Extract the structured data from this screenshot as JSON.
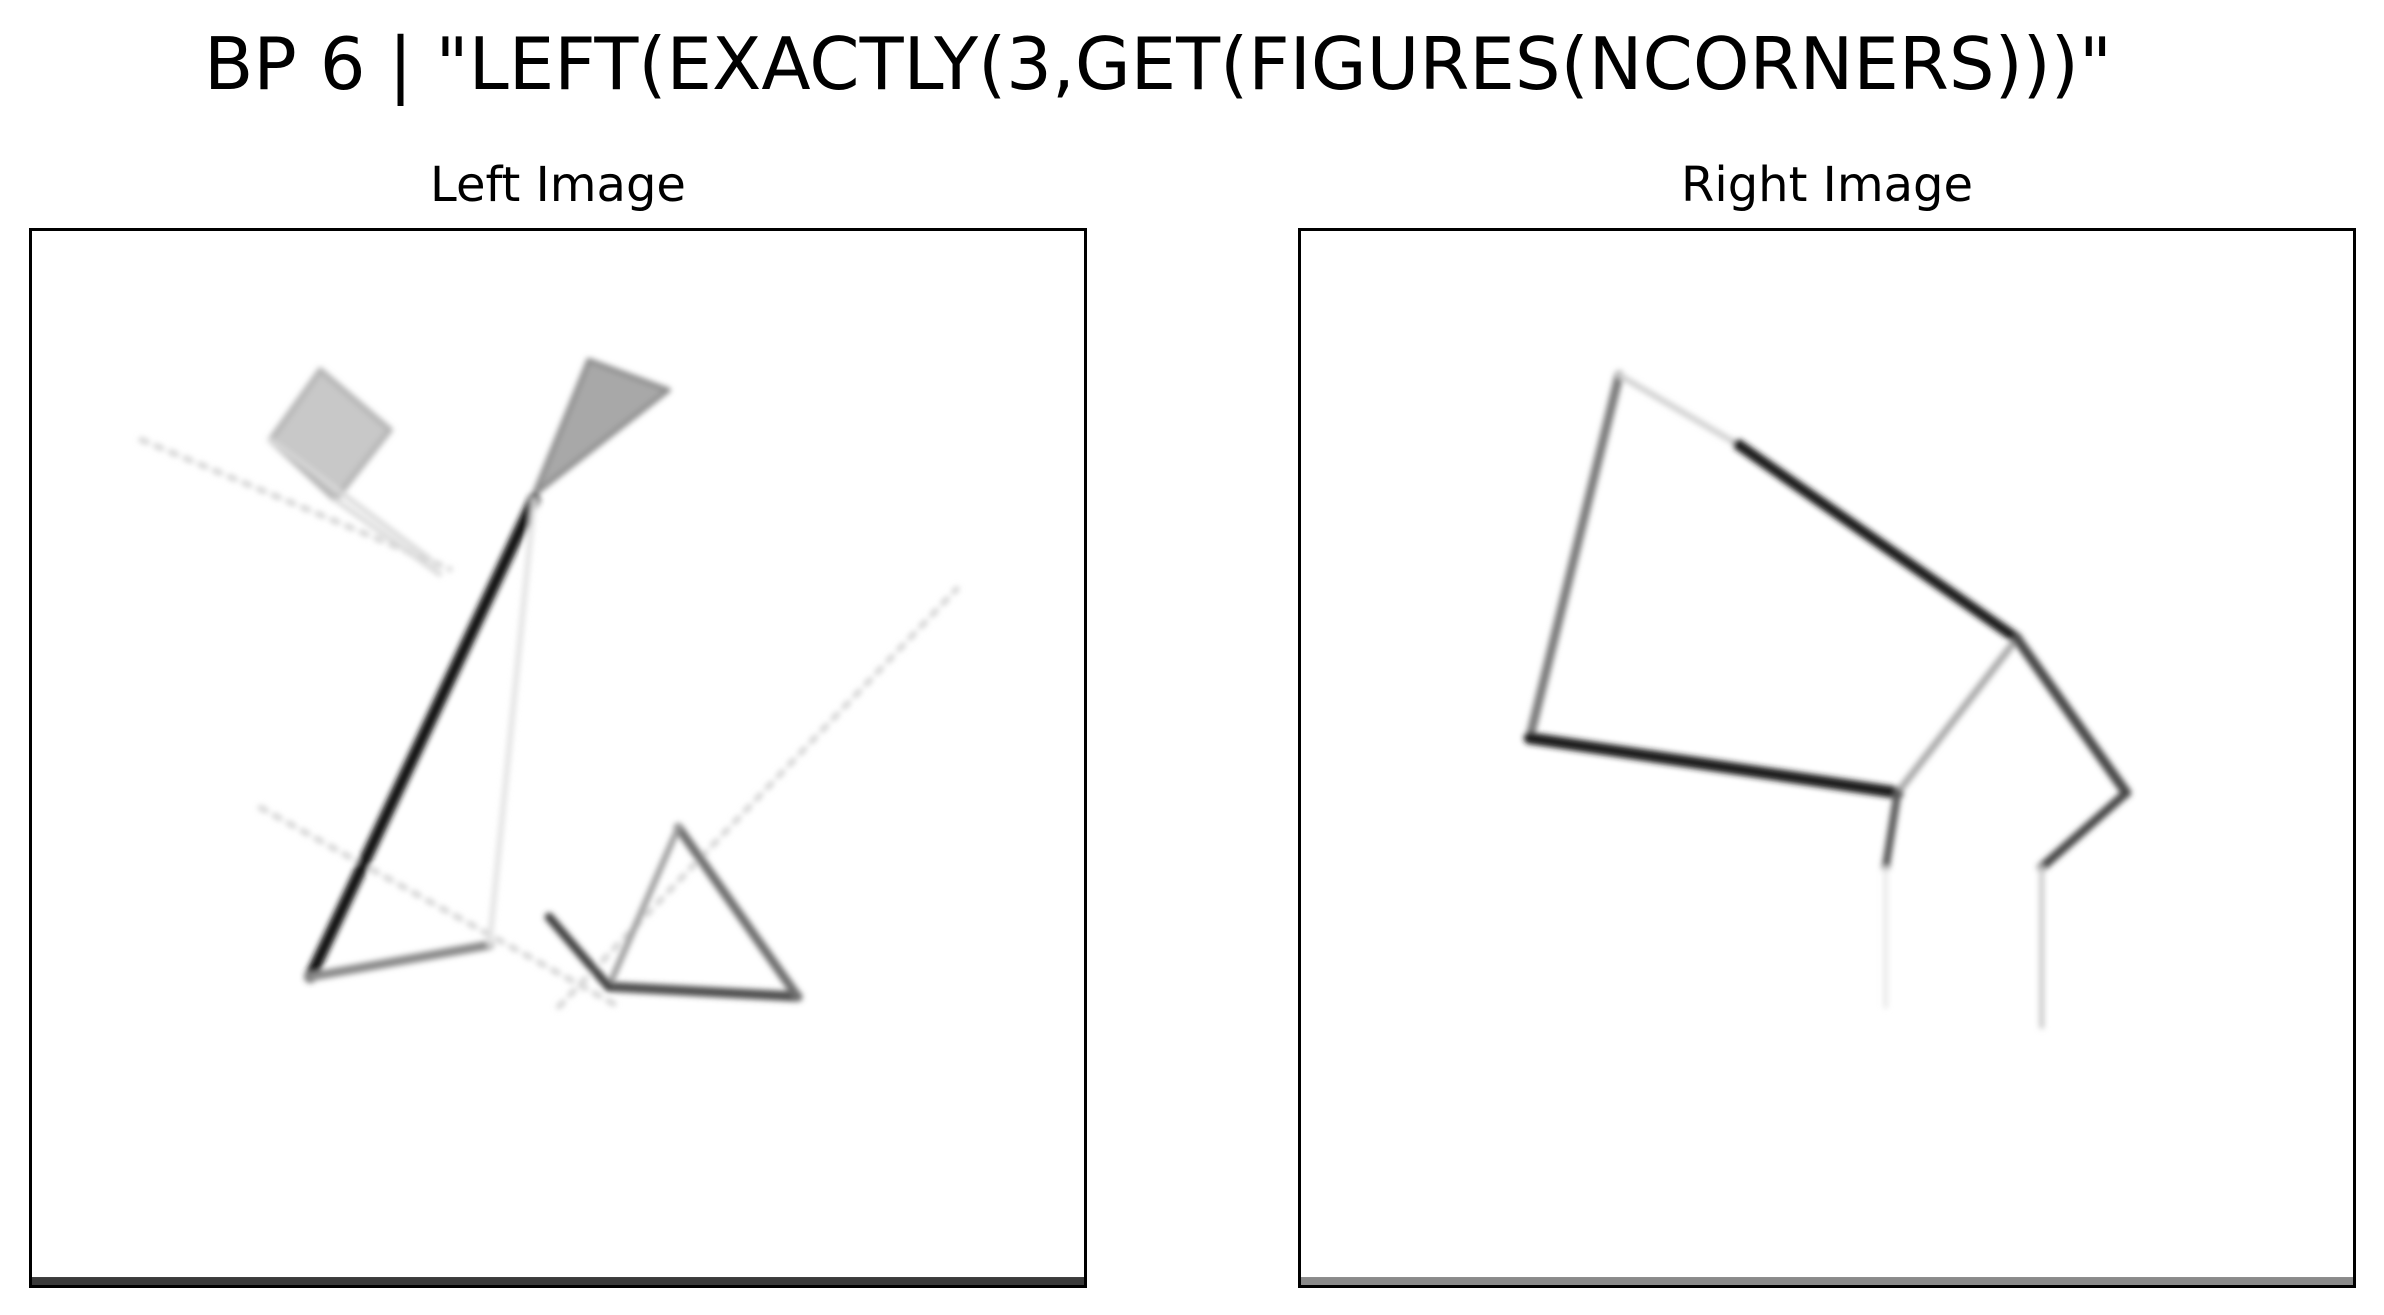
{
  "title": "BP 6 | \"LEFT(EXACTLY(3,GET(FIGURES(NCORNERS)))\"",
  "panels": [
    {
      "label": "Left Image"
    },
    {
      "label": "Right Image"
    }
  ]
}
